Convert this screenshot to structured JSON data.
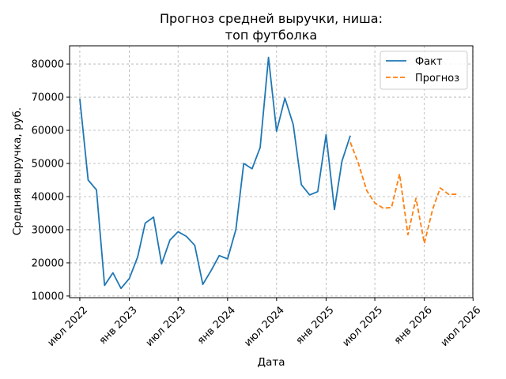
{
  "chart_data": {
    "type": "line",
    "title_lines": [
      "Прогноз средней выручки, ниша:",
      "топ футболка"
    ],
    "xlabel": "Дата",
    "ylabel": "Средняя выручка, руб.",
    "x_type": "date",
    "x_ticks": [
      {
        "date": "2022-07-01",
        "label": "июл 2022"
      },
      {
        "date": "2023-01-01",
        "label": "янв 2023"
      },
      {
        "date": "2023-07-01",
        "label": "июл 2023"
      },
      {
        "date": "2024-01-01",
        "label": "янв 2024"
      },
      {
        "date": "2024-07-01",
        "label": "июл 2024"
      },
      {
        "date": "2025-01-01",
        "label": "янв 2025"
      },
      {
        "date": "2025-07-01",
        "label": "июл 2025"
      },
      {
        "date": "2026-01-01",
        "label": "янв 2026"
      },
      {
        "date": "2026-07-01",
        "label": "июл 2026"
      }
    ],
    "xlim": [
      "2022-05-24",
      "2026-06-30"
    ],
    "y_ticks": [
      10000,
      20000,
      30000,
      40000,
      50000,
      60000,
      70000,
      80000
    ],
    "ylim": [
      9500,
      85500
    ],
    "grid": true,
    "legend_position": "top-right",
    "series": [
      {
        "name": "Факт",
        "color": "#1f77b4",
        "style": "solid",
        "x": [
          "2022-07-01",
          "2022-08-01",
          "2022-09-01",
          "2022-10-01",
          "2022-11-01",
          "2022-12-01",
          "2023-01-01",
          "2023-02-01",
          "2023-03-01",
          "2023-04-01",
          "2023-05-01",
          "2023-06-01",
          "2023-07-01",
          "2023-08-01",
          "2023-09-01",
          "2023-10-01",
          "2023-11-01",
          "2023-12-01",
          "2024-01-01",
          "2024-02-01",
          "2024-03-01",
          "2024-04-01",
          "2024-05-01",
          "2024-06-01",
          "2024-07-01",
          "2024-08-01",
          "2024-09-01",
          "2024-10-01",
          "2024-11-01",
          "2024-12-01",
          "2025-01-01",
          "2025-02-01",
          "2025-03-01",
          "2025-04-01"
        ],
        "y": [
          69500,
          45000,
          42000,
          13200,
          17000,
          12300,
          15300,
          21800,
          32000,
          33800,
          19700,
          26900,
          29400,
          28000,
          25300,
          13500,
          17700,
          22200,
          21200,
          30100,
          50000,
          48400,
          54800,
          82000,
          59700,
          69700,
          61700,
          43600,
          40500,
          41500,
          58700,
          36100,
          50700,
          58400
        ]
      },
      {
        "name": "Прогноз",
        "color": "#ff7f0e",
        "style": "dashed",
        "x": [
          "2025-04-01",
          "2025-05-01",
          "2025-06-01",
          "2025-07-01",
          "2025-08-01",
          "2025-09-01",
          "2025-10-01",
          "2025-11-01",
          "2025-12-01",
          "2026-01-01",
          "2026-02-01",
          "2026-03-01",
          "2026-04-01",
          "2026-05-01"
        ],
        "y": [
          56400,
          50000,
          41800,
          38100,
          36500,
          36700,
          46800,
          28500,
          39500,
          25900,
          36200,
          42600,
          40700,
          40700
        ]
      }
    ]
  }
}
